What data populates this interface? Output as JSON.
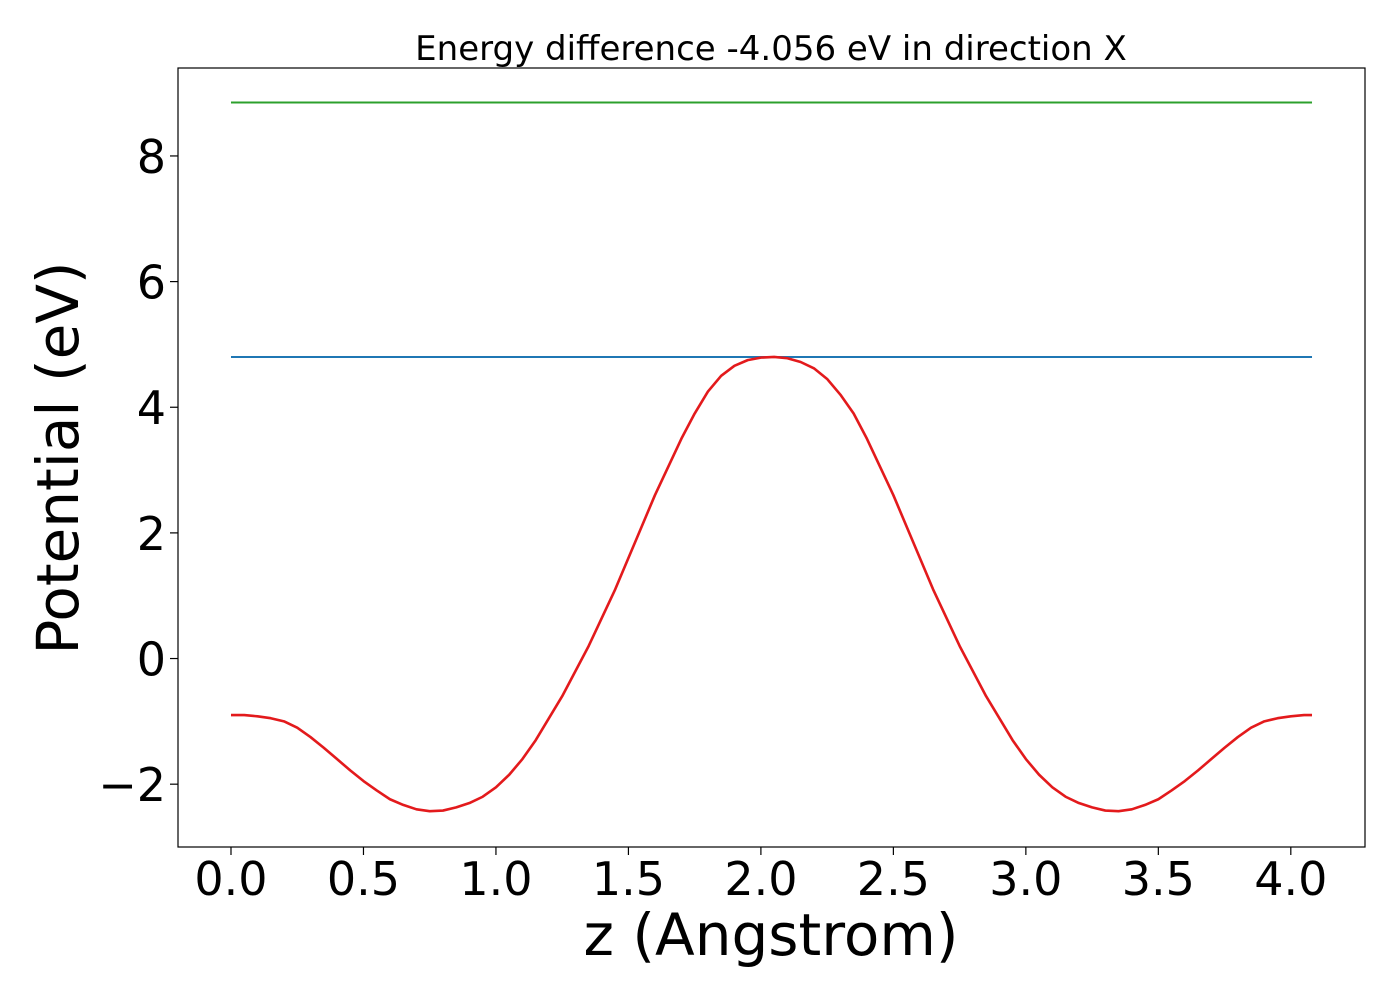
{
  "chart_data": {
    "type": "line",
    "title": "Energy difference -4.056 eV in direction X",
    "xlabel": "z (Angstrom)",
    "ylabel": "Potential (eV)",
    "xlim": [
      -0.2,
      4.28
    ],
    "ylim": [
      -3.0,
      9.4
    ],
    "x_ticks": [
      0.0,
      0.5,
      1.0,
      1.5,
      2.0,
      2.5,
      3.0,
      3.5,
      4.0
    ],
    "x_tick_labels": [
      "0.0",
      "0.5",
      "1.0",
      "1.5",
      "2.0",
      "2.5",
      "3.0",
      "3.5",
      "4.0"
    ],
    "y_ticks": [
      -2,
      0,
      2,
      4,
      6,
      8
    ],
    "y_tick_labels": [
      "−2",
      "0",
      "2",
      "4",
      "6",
      "8"
    ],
    "grid": false,
    "series": [
      {
        "color": "#2ca02c",
        "x": [
          0.0,
          4.08
        ],
        "y": [
          8.85,
          8.85
        ]
      },
      {
        "color": "#1f77b4",
        "x": [
          0.0,
          4.08
        ],
        "y": [
          4.8,
          4.8
        ]
      },
      {
        "color": "#e31a1c",
        "x": [
          0.0,
          0.05,
          0.1,
          0.15,
          0.2,
          0.25,
          0.3,
          0.35,
          0.4,
          0.45,
          0.5,
          0.55,
          0.6,
          0.65,
          0.7,
          0.75,
          0.8,
          0.85,
          0.9,
          0.95,
          1.0,
          1.05,
          1.1,
          1.15,
          1.2,
          1.25,
          1.3,
          1.35,
          1.4,
          1.45,
          1.5,
          1.55,
          1.6,
          1.65,
          1.7,
          1.75,
          1.8,
          1.85,
          1.9,
          1.95,
          2.0,
          2.05,
          2.1,
          2.15,
          2.2,
          2.25,
          2.3,
          2.35,
          2.4,
          2.45,
          2.5,
          2.55,
          2.6,
          2.65,
          2.7,
          2.75,
          2.8,
          2.85,
          2.9,
          2.95,
          3.0,
          3.05,
          3.1,
          3.15,
          3.2,
          3.25,
          3.3,
          3.35,
          3.4,
          3.45,
          3.5,
          3.55,
          3.6,
          3.65,
          3.7,
          3.75,
          3.8,
          3.85,
          3.9,
          3.95,
          4.0,
          4.05,
          4.08
        ],
        "y": [
          -0.9,
          -0.9,
          -0.92,
          -0.95,
          -1.0,
          -1.1,
          -1.25,
          -1.42,
          -1.6,
          -1.78,
          -1.95,
          -2.1,
          -2.24,
          -2.33,
          -2.4,
          -2.43,
          -2.42,
          -2.37,
          -2.3,
          -2.2,
          -2.05,
          -1.85,
          -1.6,
          -1.3,
          -0.95,
          -0.6,
          -0.2,
          0.2,
          0.65,
          1.1,
          1.6,
          2.1,
          2.6,
          3.05,
          3.5,
          3.9,
          4.25,
          4.5,
          4.66,
          4.75,
          4.79,
          4.8,
          4.78,
          4.72,
          4.62,
          4.45,
          4.2,
          3.9,
          3.5,
          3.05,
          2.6,
          2.1,
          1.6,
          1.1,
          0.65,
          0.2,
          -0.2,
          -0.6,
          -0.95,
          -1.3,
          -1.6,
          -1.85,
          -2.05,
          -2.2,
          -2.3,
          -2.37,
          -2.42,
          -2.43,
          -2.4,
          -2.33,
          -2.24,
          -2.1,
          -1.95,
          -1.78,
          -1.6,
          -1.42,
          -1.25,
          -1.1,
          -1.0,
          -0.95,
          -0.92,
          -0.9,
          -0.9
        ]
      }
    ]
  }
}
